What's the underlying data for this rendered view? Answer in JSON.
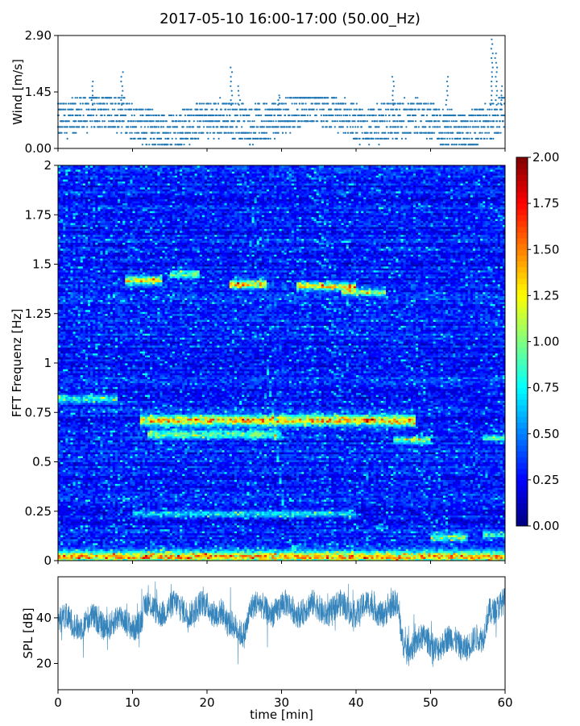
{
  "title": "2017-05-10 16:00-17:00 (50.00_Hz)",
  "chart_data": [
    {
      "type": "scatter",
      "panel": "wind",
      "ylabel": "Wind [m/s]",
      "xlim": [
        0,
        60
      ],
      "ylim": [
        0,
        2.9
      ],
      "yticks": [
        "0.00",
        "1.45",
        "2.90"
      ],
      "color": "#1f77b4",
      "base_level": 0.7,
      "peaks": [
        {
          "t": 4.6,
          "v": 1.75
        },
        {
          "t": 8.6,
          "v": 2.05
        },
        {
          "t": 23.3,
          "v": 2.2
        },
        {
          "t": 24.3,
          "v": 1.7
        },
        {
          "t": 29.6,
          "v": 1.4
        },
        {
          "t": 45.0,
          "v": 1.95
        },
        {
          "t": 52.2,
          "v": 1.95
        },
        {
          "t": 58.2,
          "v": 2.9
        },
        {
          "t": 58.8,
          "v": 2.5
        },
        {
          "t": 59.6,
          "v": 1.7
        }
      ]
    },
    {
      "type": "heatmap",
      "panel": "spectrogram",
      "ylabel": "FFT Frequenz [Hz]",
      "xlim": [
        0,
        60
      ],
      "ylim": [
        0,
        2
      ],
      "yticks": [
        "0",
        "0.25",
        "0.5",
        "0.75",
        "1",
        "1.25",
        "1.5",
        "1.75",
        "2"
      ],
      "colorbar": {
        "range": [
          0,
          2
        ],
        "ticks": [
          "0.00",
          "0.25",
          "0.50",
          "0.75",
          "1.00",
          "1.25",
          "1.50",
          "1.75",
          "2.00"
        ],
        "colormap": "jet"
      },
      "background_level": 0.3,
      "bands": [
        {
          "t0": 0,
          "t1": 60,
          "f": 0.02,
          "w": 0.03,
          "a": 1.1
        },
        {
          "t0": 0,
          "t1": 8,
          "f": 0.82,
          "w": 0.02,
          "a": 0.55
        },
        {
          "t0": 11,
          "t1": 48,
          "f": 0.71,
          "w": 0.025,
          "a": 1.2
        },
        {
          "t0": 12,
          "t1": 30,
          "f": 0.64,
          "w": 0.02,
          "a": 0.7
        },
        {
          "t0": 45,
          "t1": 50,
          "f": 0.61,
          "w": 0.015,
          "a": 0.85
        },
        {
          "t0": 57,
          "t1": 60,
          "f": 0.62,
          "w": 0.015,
          "a": 0.6
        },
        {
          "t0": 9,
          "t1": 14,
          "f": 1.42,
          "w": 0.02,
          "a": 1.0
        },
        {
          "t0": 15,
          "t1": 19,
          "f": 1.45,
          "w": 0.02,
          "a": 0.7
        },
        {
          "t0": 23,
          "t1": 28,
          "f": 1.4,
          "w": 0.02,
          "a": 1.1
        },
        {
          "t0": 32,
          "t1": 40,
          "f": 1.39,
          "w": 0.02,
          "a": 0.95
        },
        {
          "t0": 38,
          "t1": 44,
          "f": 1.36,
          "w": 0.015,
          "a": 0.9
        },
        {
          "t0": 10,
          "t1": 40,
          "f": 0.24,
          "w": 0.015,
          "a": 0.55
        },
        {
          "t0": 50,
          "t1": 55,
          "f": 0.12,
          "w": 0.02,
          "a": 0.75
        },
        {
          "t0": 57,
          "t1": 60,
          "f": 0.13,
          "w": 0.015,
          "a": 0.65
        }
      ]
    },
    {
      "type": "line",
      "panel": "spl",
      "xlabel": "time [min]",
      "ylabel": "SPL [dB]",
      "xlim": [
        0,
        60
      ],
      "ylim": [
        8.5,
        58
      ],
      "xticks": [
        "0",
        "10",
        "20",
        "30",
        "40",
        "50",
        "60"
      ],
      "yticks": [
        "20",
        "40"
      ],
      "color": "#1f77b4",
      "segments": [
        {
          "t0": 0,
          "t1": 11,
          "mean": 38
        },
        {
          "t0": 11,
          "t1": 22,
          "mean": 44
        },
        {
          "t0": 22,
          "t1": 25,
          "mean": 35
        },
        {
          "t0": 25,
          "t1": 45.5,
          "mean": 44
        },
        {
          "t0": 45.5,
          "t1": 57,
          "mean": 29
        },
        {
          "t0": 57,
          "t1": 60,
          "mean": 45
        }
      ]
    }
  ]
}
